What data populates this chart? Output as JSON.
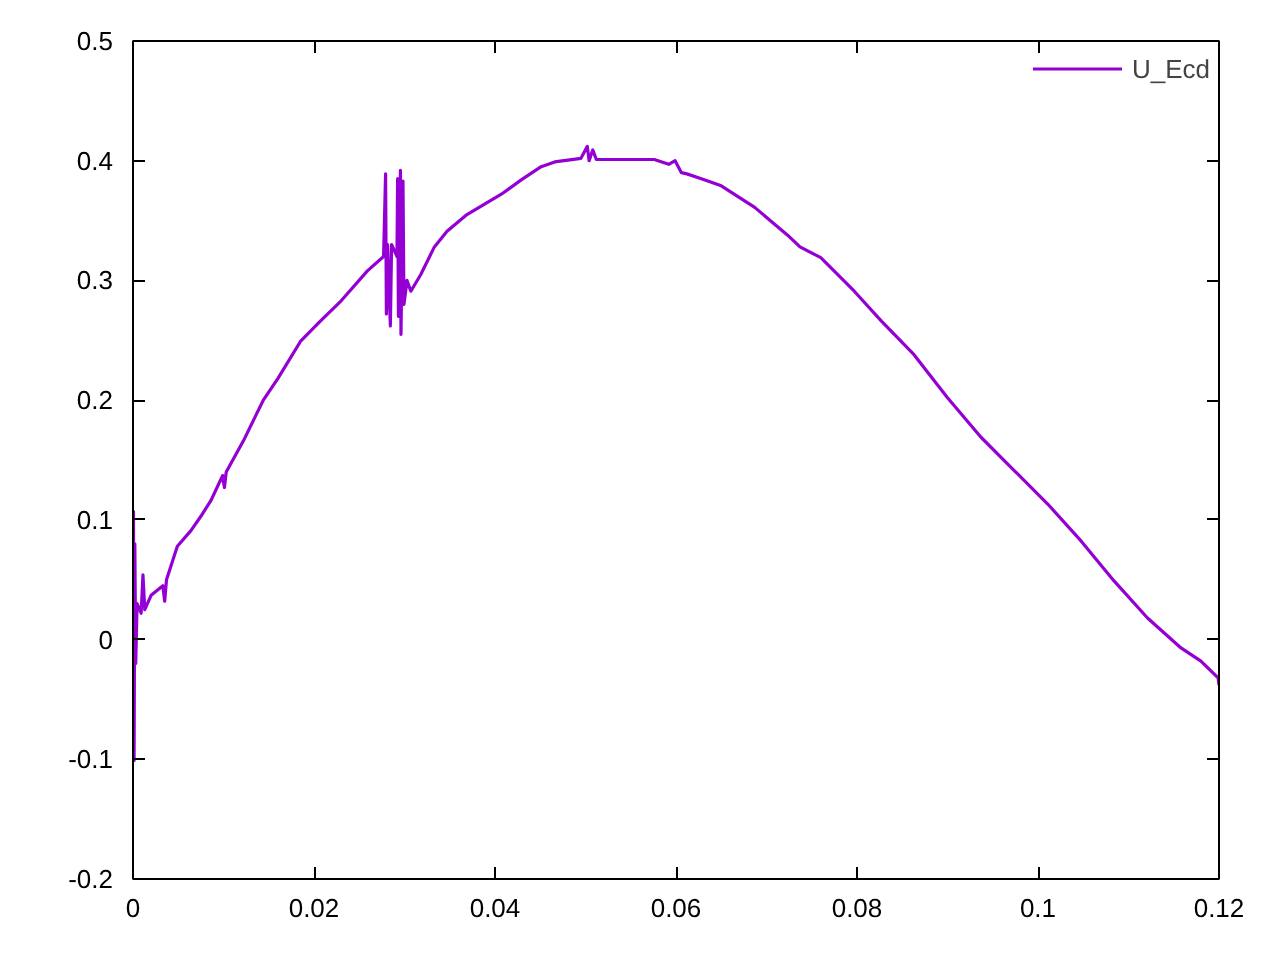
{
  "chart_data": {
    "type": "line",
    "xlim": [
      0,
      0.12
    ],
    "ylim": [
      -0.2,
      0.5
    ],
    "xticks": [
      0,
      0.02,
      0.04,
      0.06,
      0.08,
      0.1,
      0.12
    ],
    "yticks": [
      -0.2,
      -0.1,
      0,
      0.1,
      0.2,
      0.3,
      0.4,
      0.5
    ],
    "grid": false,
    "legend": "top right",
    "x": [
      0.0,
      5e-05,
      0.00012,
      0.0002,
      0.0003,
      0.00045,
      0.0009,
      0.0011,
      0.0013,
      0.002,
      0.0033,
      0.0035,
      0.0037,
      0.0049,
      0.0064,
      0.0075,
      0.0086,
      0.0099,
      0.0101,
      0.0103,
      0.0122,
      0.0144,
      0.016,
      0.0185,
      0.0207,
      0.023,
      0.0259,
      0.02769,
      0.02791,
      0.028,
      0.02813,
      0.02844,
      0.02857,
      0.02917,
      0.02924,
      0.02933,
      0.02955,
      0.02961,
      0.02983,
      0.02994,
      0.03028,
      0.0307,
      0.0318,
      0.0333,
      0.0347,
      0.0369,
      0.0407,
      0.0429,
      0.0451,
      0.0466,
      0.0495,
      0.0502,
      0.0504,
      0.0508,
      0.0512,
      0.0539,
      0.0576,
      0.0592,
      0.0599,
      0.0606,
      0.0612,
      0.0628,
      0.065,
      0.0687,
      0.0723,
      0.0737,
      0.076,
      0.0797,
      0.0827,
      0.0863,
      0.09,
      0.0937,
      0.0974,
      0.1011,
      0.1048,
      0.1084,
      0.1121,
      0.1158,
      0.118,
      0.1199,
      0.12
    ],
    "series": [
      {
        "name": "U_Ecd",
        "color": "#9400d3",
        "values": [
          0.0,
          0.107,
          -0.101,
          0.08,
          -0.02,
          0.03,
          0.022,
          0.054,
          0.025,
          0.037,
          0.045,
          0.032,
          0.05,
          0.078,
          0.091,
          0.103,
          0.116,
          0.137,
          0.127,
          0.14,
          0.166,
          0.2,
          0.218,
          0.249,
          0.266,
          0.283,
          0.308,
          0.32,
          0.389,
          0.272,
          0.33,
          0.262,
          0.33,
          0.32,
          0.385,
          0.27,
          0.392,
          0.255,
          0.383,
          0.28,
          0.3,
          0.291,
          0.305,
          0.328,
          0.341,
          0.355,
          0.372,
          0.384,
          0.395,
          0.399,
          0.402,
          0.412,
          0.4,
          0.409,
          0.401,
          0.401,
          0.401,
          0.397,
          0.4,
          0.39,
          0.389,
          0.385,
          0.379,
          0.361,
          0.338,
          0.328,
          0.319,
          0.291,
          0.266,
          0.238,
          0.202,
          0.169,
          0.141,
          0.113,
          0.082,
          0.049,
          0.018,
          -0.007,
          -0.018,
          -0.032,
          -0.038
        ]
      }
    ]
  }
}
